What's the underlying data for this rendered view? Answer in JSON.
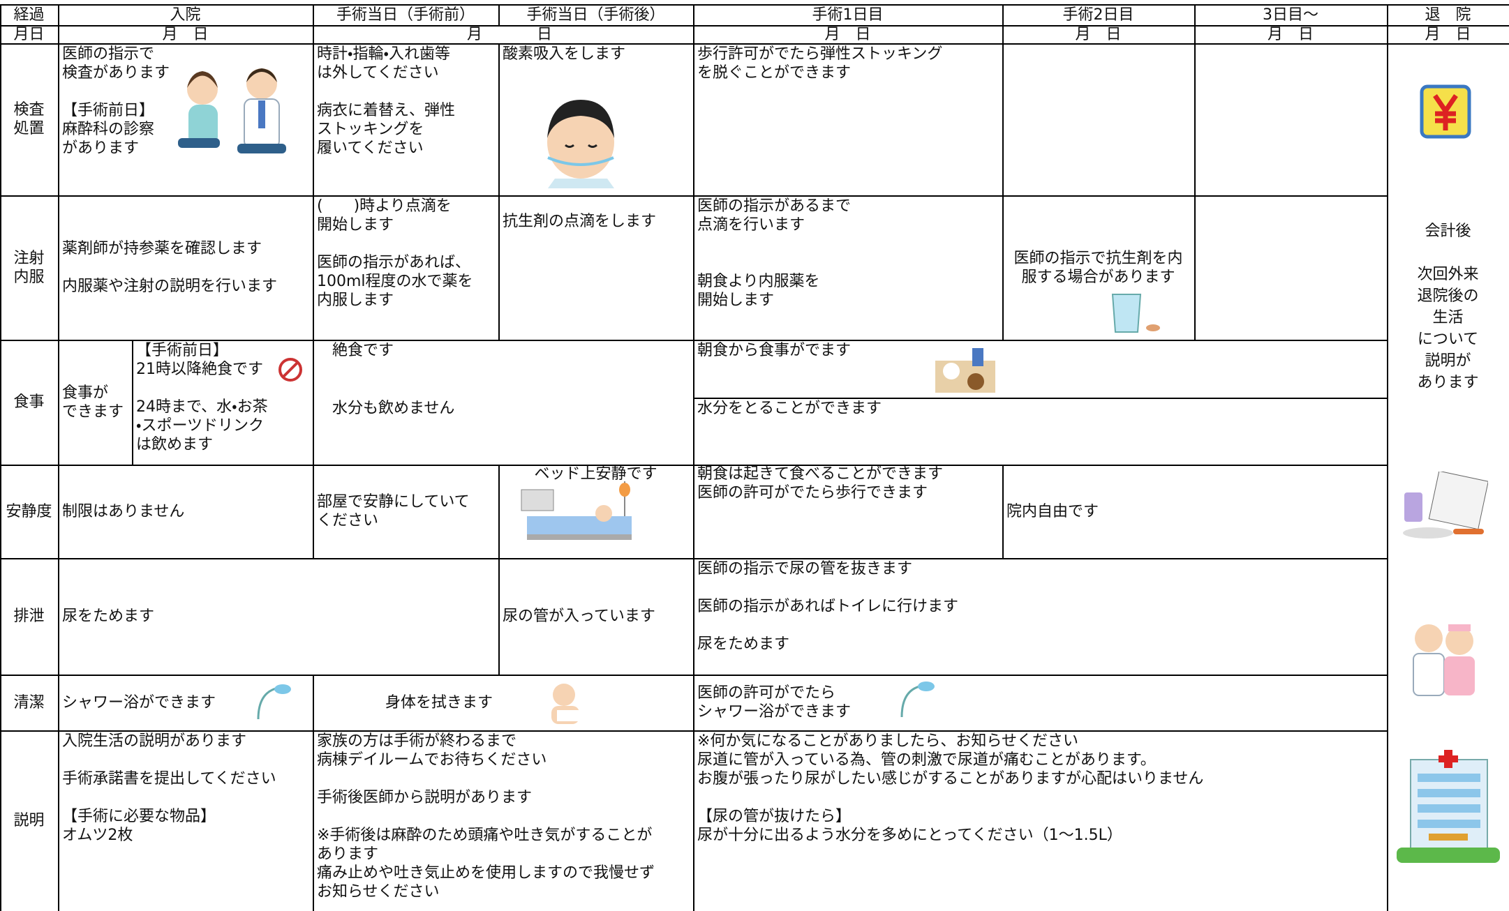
{
  "header": {
    "columns": [
      "経過",
      "入院",
      "手術当日（手術前）",
      "手術当日（手術後）",
      "手術1日目",
      "手術2日目",
      "3日目～",
      "退　院"
    ],
    "dates": [
      "月日",
      "月　日",
      "月",
      "日",
      "月　日",
      "月　日",
      "月　日",
      "月　日"
    ]
  },
  "rows": [
    {
      "label": "検査\n処置",
      "cells": [
        "医師の指示で\n検査があります\n\n【手術前日】\n麻酔科の診察\nがあります",
        "時計・指輪・入れ歯等\nは外してください\n\n病衣に着替え、弾性\nストッキングを\n履いてください",
        "酸素吸入をします",
        "歩行許可がでたら弾性ストッキング\nを脱ぐことができます"
      ]
    },
    {
      "label": "注射\n内服",
      "cells": [
        "薬剤師が持参薬を確認します\n\n内服薬や注射の説明を行います",
        "(　　)時より点滴を\n開始します\n\n医師の指示があれば、\n100ml程度の水で薬を\n内服します",
        "抗生剤の点滴をします",
        "医師の指示があるまで\n点滴を行います\n\n\n朝食より内服薬を\n開始します",
        "医師の指示で抗生剤を内\n服する場合があります"
      ]
    },
    {
      "label": "食事",
      "cells": [
        "食事が\nできます",
        "【手術前日】\n21時以降絶食です\n\n24時まで、水・お茶\n・スポーツドリンク\nは飲めます",
        "絶食です",
        "水分も飲めません",
        "朝食から食事がでます",
        "水分をとることができます"
      ]
    },
    {
      "label": "安静度",
      "cells": [
        "制限はありません",
        "部屋で安静にしていて\nください",
        "ベッド上安静です",
        "朝食は起きて食べることができます\n医師の許可がでたら歩行できます",
        "院内自由です"
      ]
    },
    {
      "label": "排泄",
      "cells": [
        "尿をためます",
        "尿の管が入っています",
        "医師の指示で尿の管を抜きます\n\n医師の指示があればトイレに行けます\n\n尿をためます"
      ]
    },
    {
      "label": "清潔",
      "cells": [
        "シャワー浴ができます",
        "身体を拭きます",
        "医師の許可がでたら\nシャワー浴ができます"
      ]
    },
    {
      "label": "説明",
      "cells": [
        "入院生活の説明があります\n\n手術承諾書を提出してください\n\n【手術に必要な物品】\nオムツ2枚",
        "家族の方は手術が終わるまで\n病棟デイルームでお待ちください\n\n手術後医師から説明があります\n\n※手術後は麻酔のため頭痛や吐き気がすることが\nあります\n痛み止めや吐き気止めを使用しますので我慢せず\nお知らせください",
        "※何か気になることがありましたら、お知らせください\n尿道に管が入っている為、管の刺激で尿道が痛むことがあります。\nお腹が張ったり尿がしたい感じがすることがありますが心配はいりません\n\n【尿の管が抜けたら】\n尿が十分に出るよう水分を多めにとってください（1～1.5L）"
      ]
    }
  ],
  "discharge": "会計後\n\n次回外来\n退院後の\n生活\nについて\n説明が\nあります"
}
